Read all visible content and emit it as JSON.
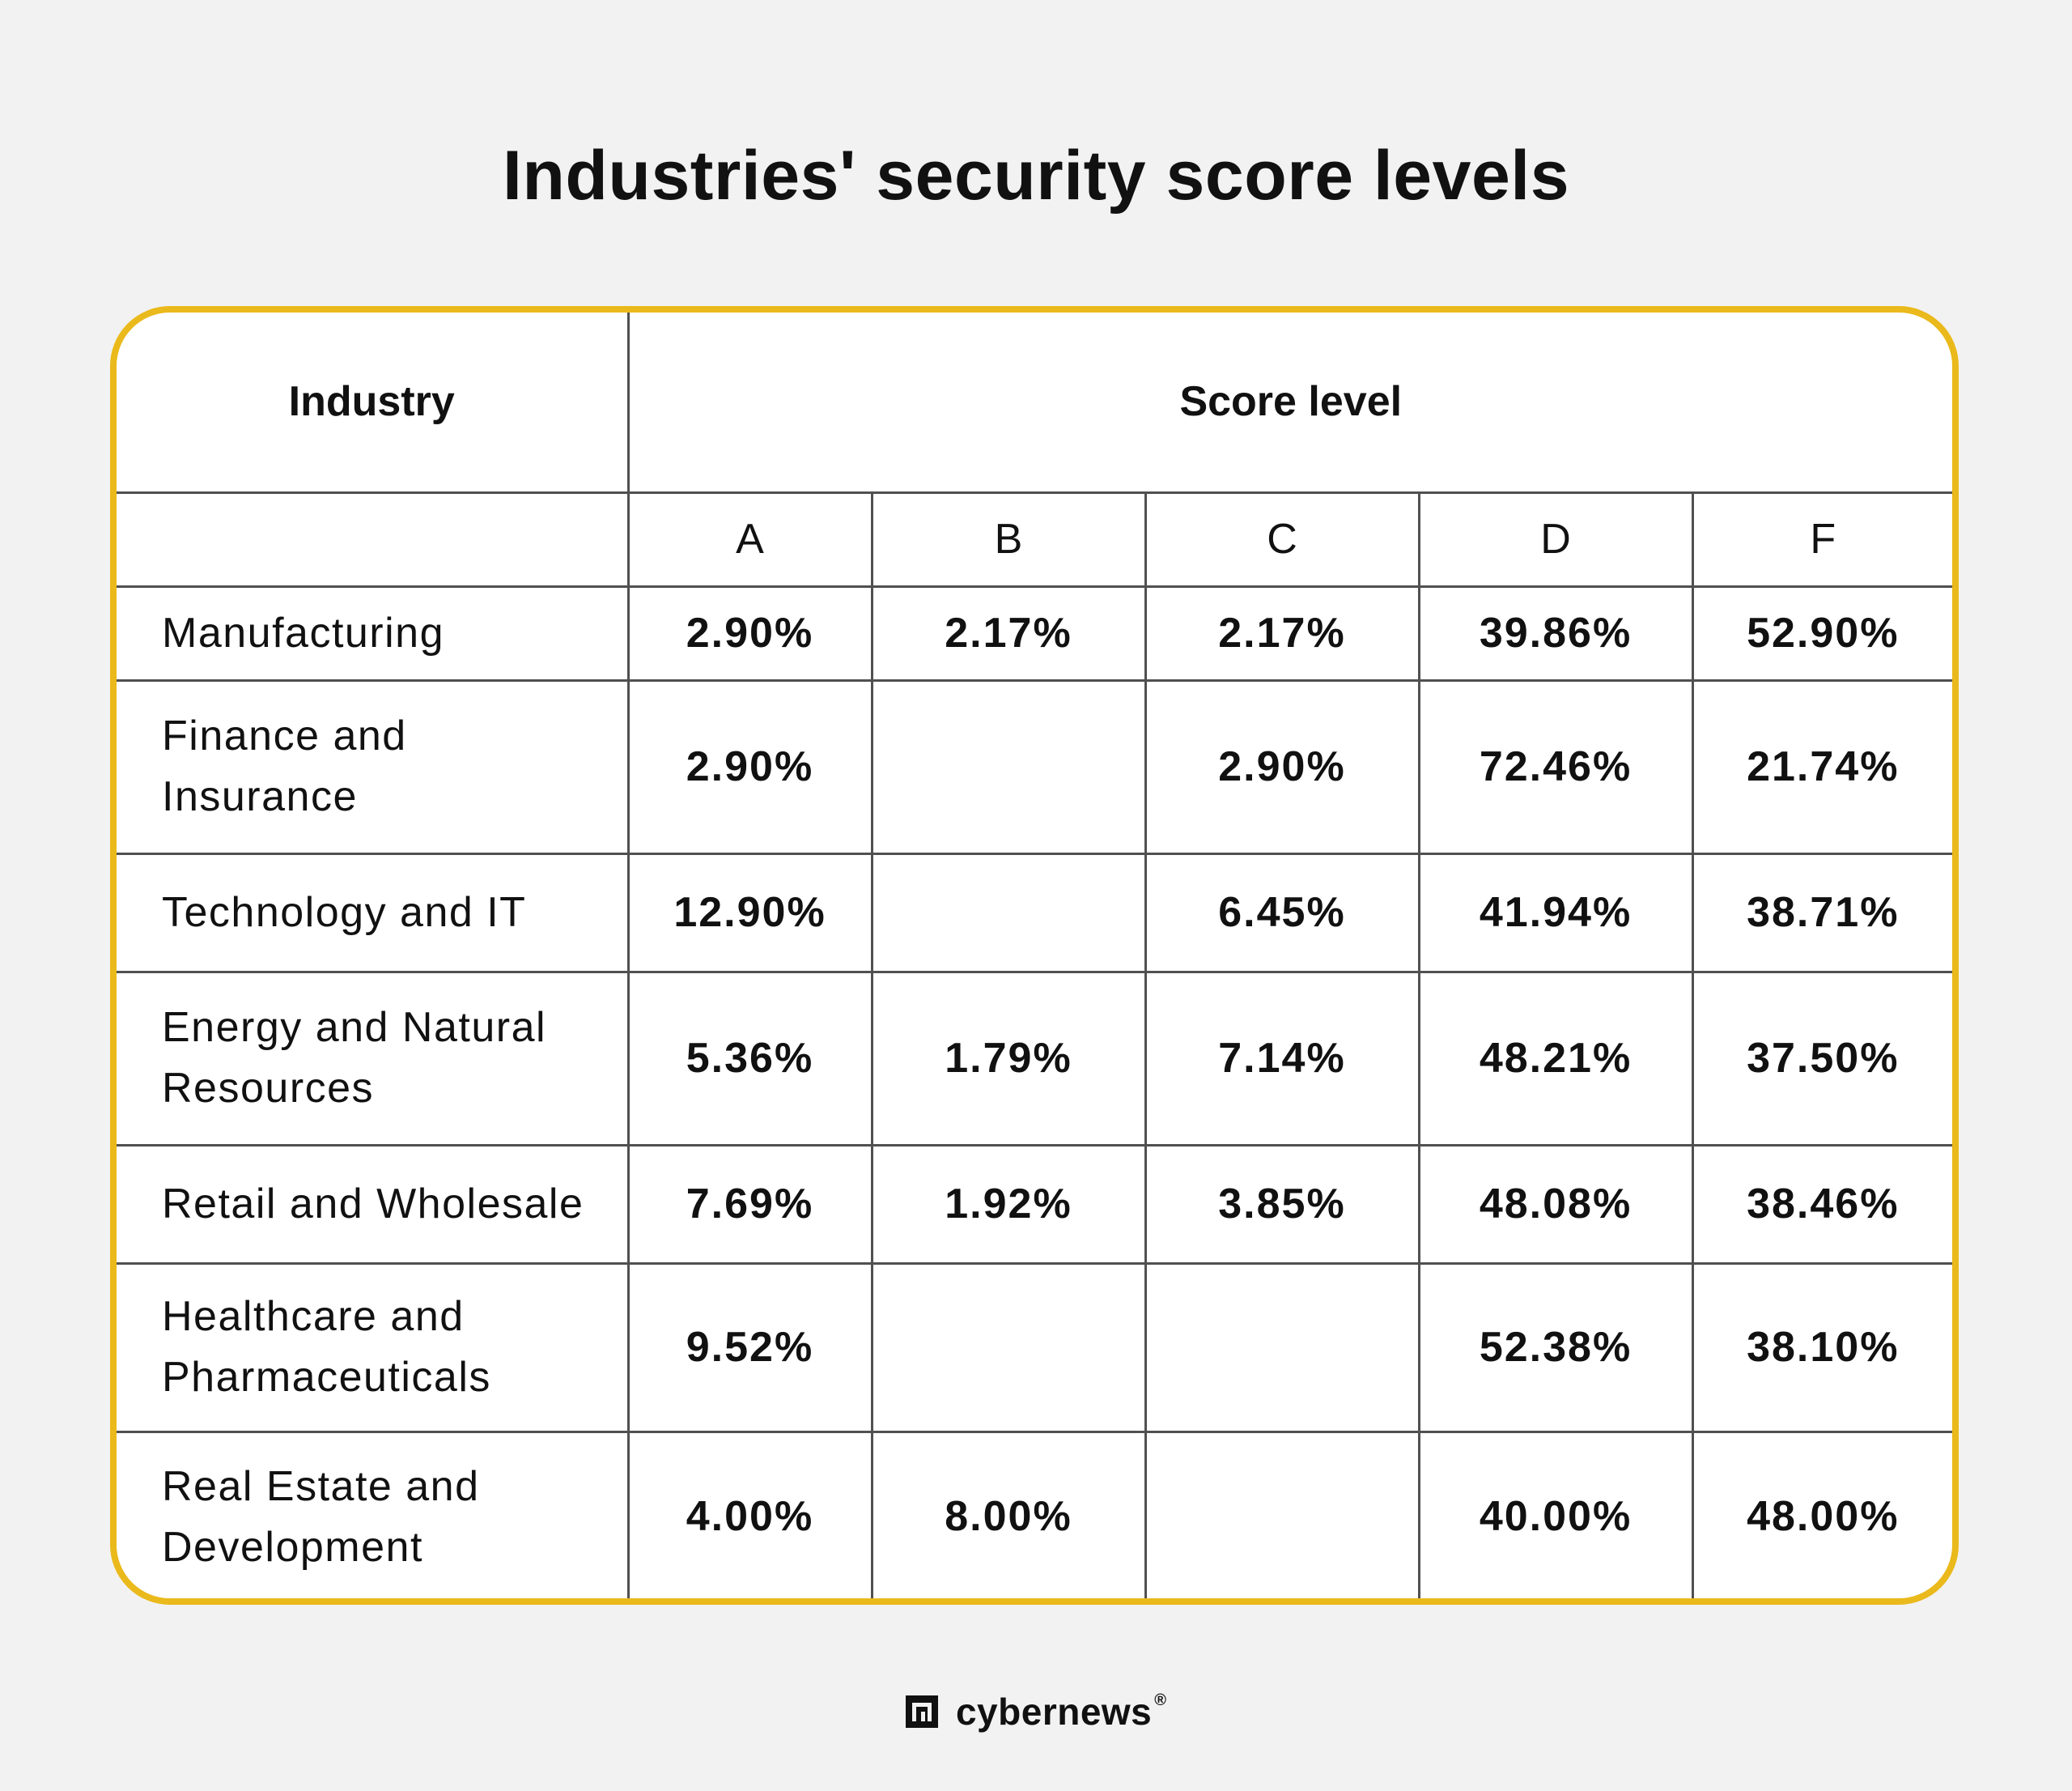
{
  "chart_data": {
    "type": "table",
    "title": "Industries' security score levels",
    "header": {
      "industry_label": "Industry",
      "score_label": "Score level"
    },
    "columns": [
      "A",
      "B",
      "C",
      "D",
      "F"
    ],
    "rows": [
      {
        "industry": "Manufacturing",
        "values": [
          "2.90%",
          "2.17%",
          "2.17%",
          "39.86%",
          "52.90%"
        ]
      },
      {
        "industry": "Finance and Insurance",
        "values": [
          "2.90%",
          "",
          "2.90%",
          "72.46%",
          "21.74%"
        ]
      },
      {
        "industry": "Technology and IT",
        "values": [
          "12.90%",
          "",
          "6.45%",
          "41.94%",
          "38.71%"
        ]
      },
      {
        "industry": "Energy and Natural Resources",
        "values": [
          "5.36%",
          "1.79%",
          "7.14%",
          "48.21%",
          "37.50%"
        ]
      },
      {
        "industry": "Retail and Wholesale",
        "values": [
          "7.69%",
          "1.92%",
          "3.85%",
          "48.08%",
          "38.46%"
        ]
      },
      {
        "industry": "Healthcare and Pharmaceuticals",
        "values": [
          "9.52%",
          "",
          "",
          "52.38%",
          "38.10%"
        ]
      },
      {
        "industry": "Real Estate and Development",
        "values": [
          "4.00%",
          "8.00%",
          "",
          "40.00%",
          "48.00%"
        ]
      }
    ]
  },
  "footer": {
    "brand": "cybernews",
    "registered": "®",
    "logo_icon": "cybernews-logo-icon"
  },
  "colors": {
    "background": "#f2f2f2",
    "frame": "#eab91b",
    "grid_line": "#505050",
    "text": "#111111"
  }
}
